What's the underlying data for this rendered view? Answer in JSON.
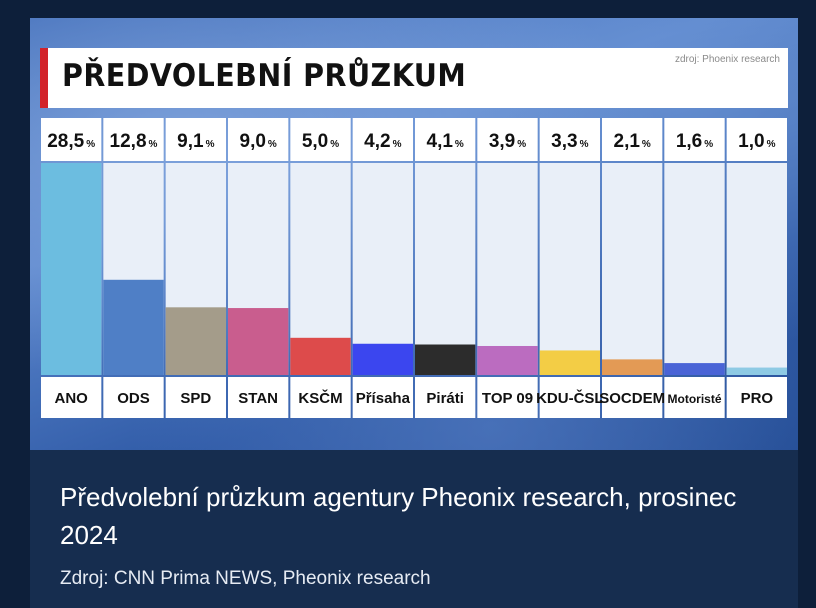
{
  "chart_data": {
    "type": "bar",
    "title": "PŘEDVOLEBNÍ PRŮZKUM",
    "source_note": "zdroj: Phoenix research",
    "categories": [
      "ANO",
      "ODS",
      "SPD",
      "STAN",
      "KSČM",
      "Přísaha",
      "Piráti",
      "TOP 09",
      "KDU-ČSL",
      "SOCDEM",
      "Motoristé",
      "PRO"
    ],
    "values": [
      28.5,
      12.8,
      9.1,
      9.0,
      5.0,
      4.2,
      4.1,
      3.9,
      3.3,
      2.1,
      1.6,
      1.0
    ],
    "value_labels": [
      "28,5",
      "12,8",
      "9,1",
      "9,0",
      "5,0",
      "4,2",
      "4,1",
      "3,9",
      "3,3",
      "2,1",
      "1,6",
      "1,0"
    ],
    "unit": "%",
    "colors": [
      "#6cbde0",
      "#4f7fc6",
      "#a49c8a",
      "#c95d8e",
      "#dd4b4b",
      "#3b46ef",
      "#2c2c2c",
      "#bb6cc0",
      "#f3cd45",
      "#e39a55",
      "#4a64d6",
      "#8ecae4"
    ],
    "ylim": [
      0,
      28.5
    ],
    "xlabel": "",
    "ylabel": ""
  },
  "caption": {
    "title": "Předvolební průzkum agentury Pheonix research, prosinec 2024",
    "source": "Zdroj: CNN Prima NEWS, Pheonix research"
  }
}
